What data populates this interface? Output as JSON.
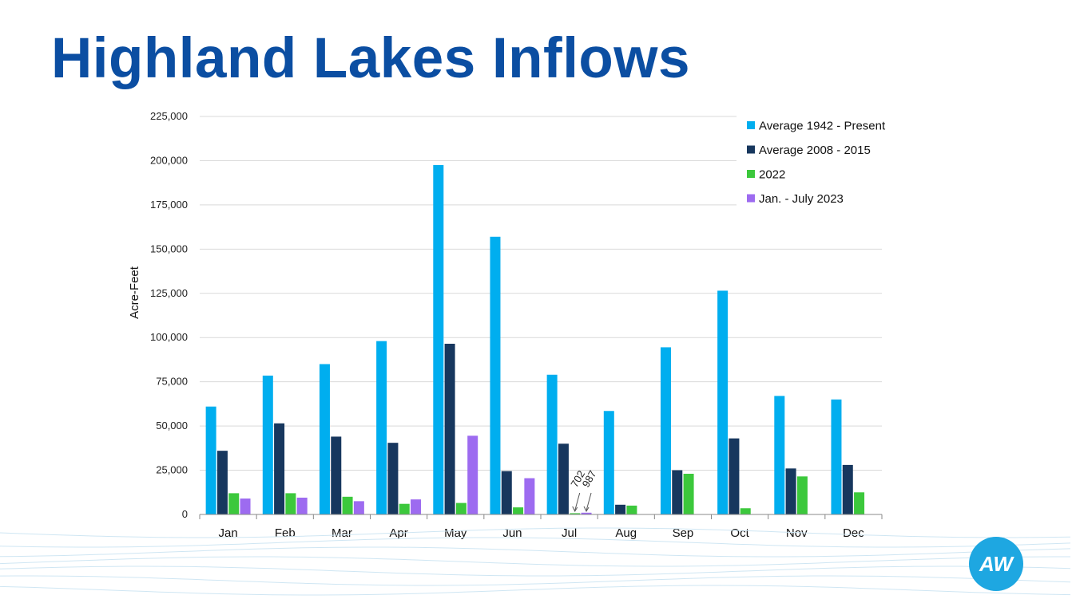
{
  "title": "Highland Lakes Inflows",
  "logo_text": "AW",
  "colors": {
    "title": "#0b4ea2",
    "series": [
      "#00aeef",
      "#17375e",
      "#3cc83c",
      "#9d6bf0"
    ],
    "grid": "#d9d9d9",
    "axis": "#888888",
    "logo": "#1ea7e1",
    "waves": "#cfe6f3"
  },
  "chart_data": {
    "type": "bar",
    "ylabel": "Acre-Feet",
    "ylim": [
      0,
      225000
    ],
    "yticks": [
      0,
      25000,
      50000,
      75000,
      100000,
      125000,
      150000,
      175000,
      200000,
      225000
    ],
    "ytick_labels": [
      "0",
      "25,000",
      "50,000",
      "75,000",
      "100,000",
      "125,000",
      "150,000",
      "175,000",
      "200,000",
      "225,000"
    ],
    "grid": true,
    "legend_position": "top-right",
    "categories": [
      "Jan",
      "Feb",
      "Mar",
      "Apr",
      "May",
      "Jun",
      "Jul",
      "Aug",
      "Sep",
      "Oct",
      "Nov",
      "Dec"
    ],
    "series": [
      {
        "name": "Average 1942 - Present",
        "values": [
          61000,
          78500,
          85000,
          98000,
          197500,
          157000,
          79000,
          58500,
          94500,
          126500,
          67000,
          65000
        ]
      },
      {
        "name": "Average 2008 - 2015",
        "values": [
          36000,
          51500,
          44000,
          40500,
          96500,
          24500,
          40000,
          5500,
          25000,
          43000,
          26000,
          28000
        ]
      },
      {
        "name": "2022",
        "values": [
          12000,
          12000,
          10000,
          6000,
          6500,
          4000,
          702,
          5000,
          23000,
          3500,
          21500,
          12500
        ]
      },
      {
        "name": "Jan. - July 2023",
        "values": [
          9000,
          9500,
          7500,
          8500,
          44500,
          20500,
          987,
          null,
          null,
          null,
          null,
          null
        ]
      }
    ],
    "annotations": [
      {
        "text": "702",
        "category": "Jul",
        "series": "2022"
      },
      {
        "text": "987",
        "category": "Jul",
        "series": "Jan. - July 2023"
      }
    ]
  }
}
